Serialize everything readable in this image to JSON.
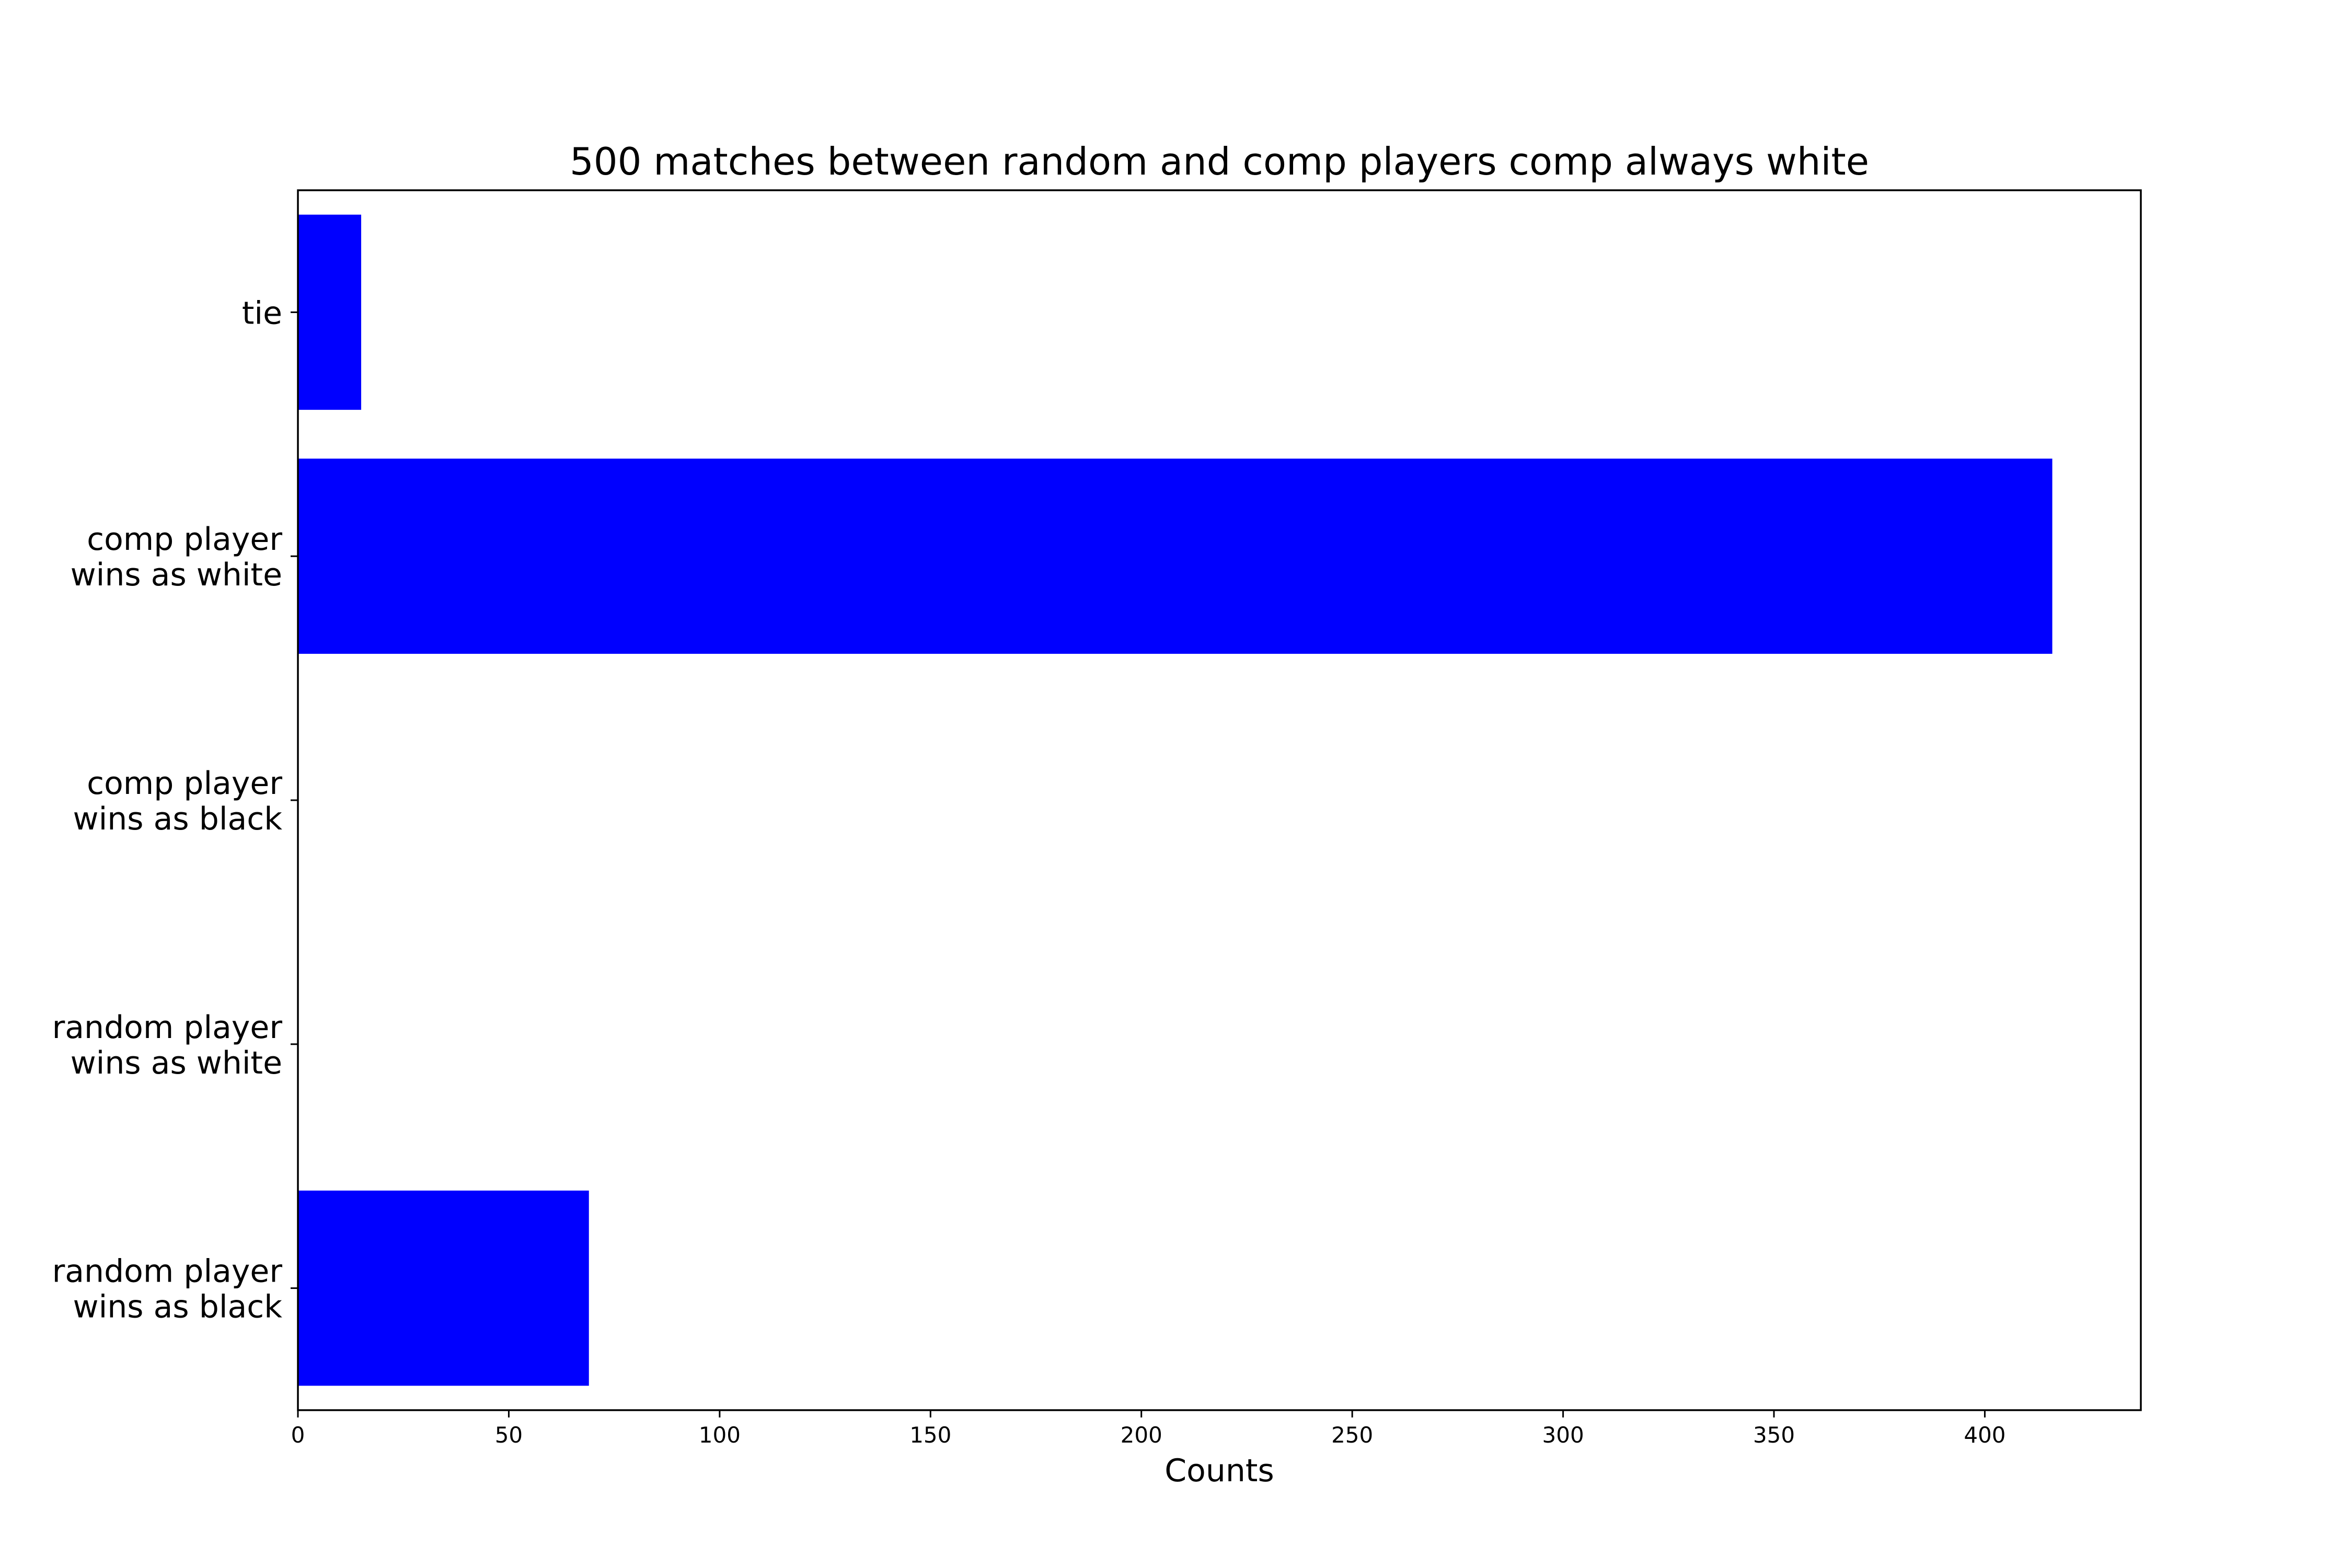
{
  "chart_data": {
    "type": "bar",
    "orientation": "horizontal",
    "title": "500 matches between random and comp players comp always white",
    "xlabel": "Counts",
    "ylabel": "",
    "categories": [
      [
        "random player",
        "wins as black"
      ],
      [
        "random player",
        "wins as white"
      ],
      [
        "comp player",
        "wins as black"
      ],
      [
        "comp player",
        "wins as white"
      ],
      [
        "tie"
      ]
    ],
    "values": [
      69,
      0,
      0,
      416,
      15
    ],
    "xlim": [
      0,
      437
    ],
    "x_ticks": [
      "0",
      "50",
      "100",
      "150",
      "200",
      "250",
      "300",
      "350",
      "400"
    ],
    "bar_color": "#0000ff",
    "grid": false,
    "legend": "none"
  }
}
